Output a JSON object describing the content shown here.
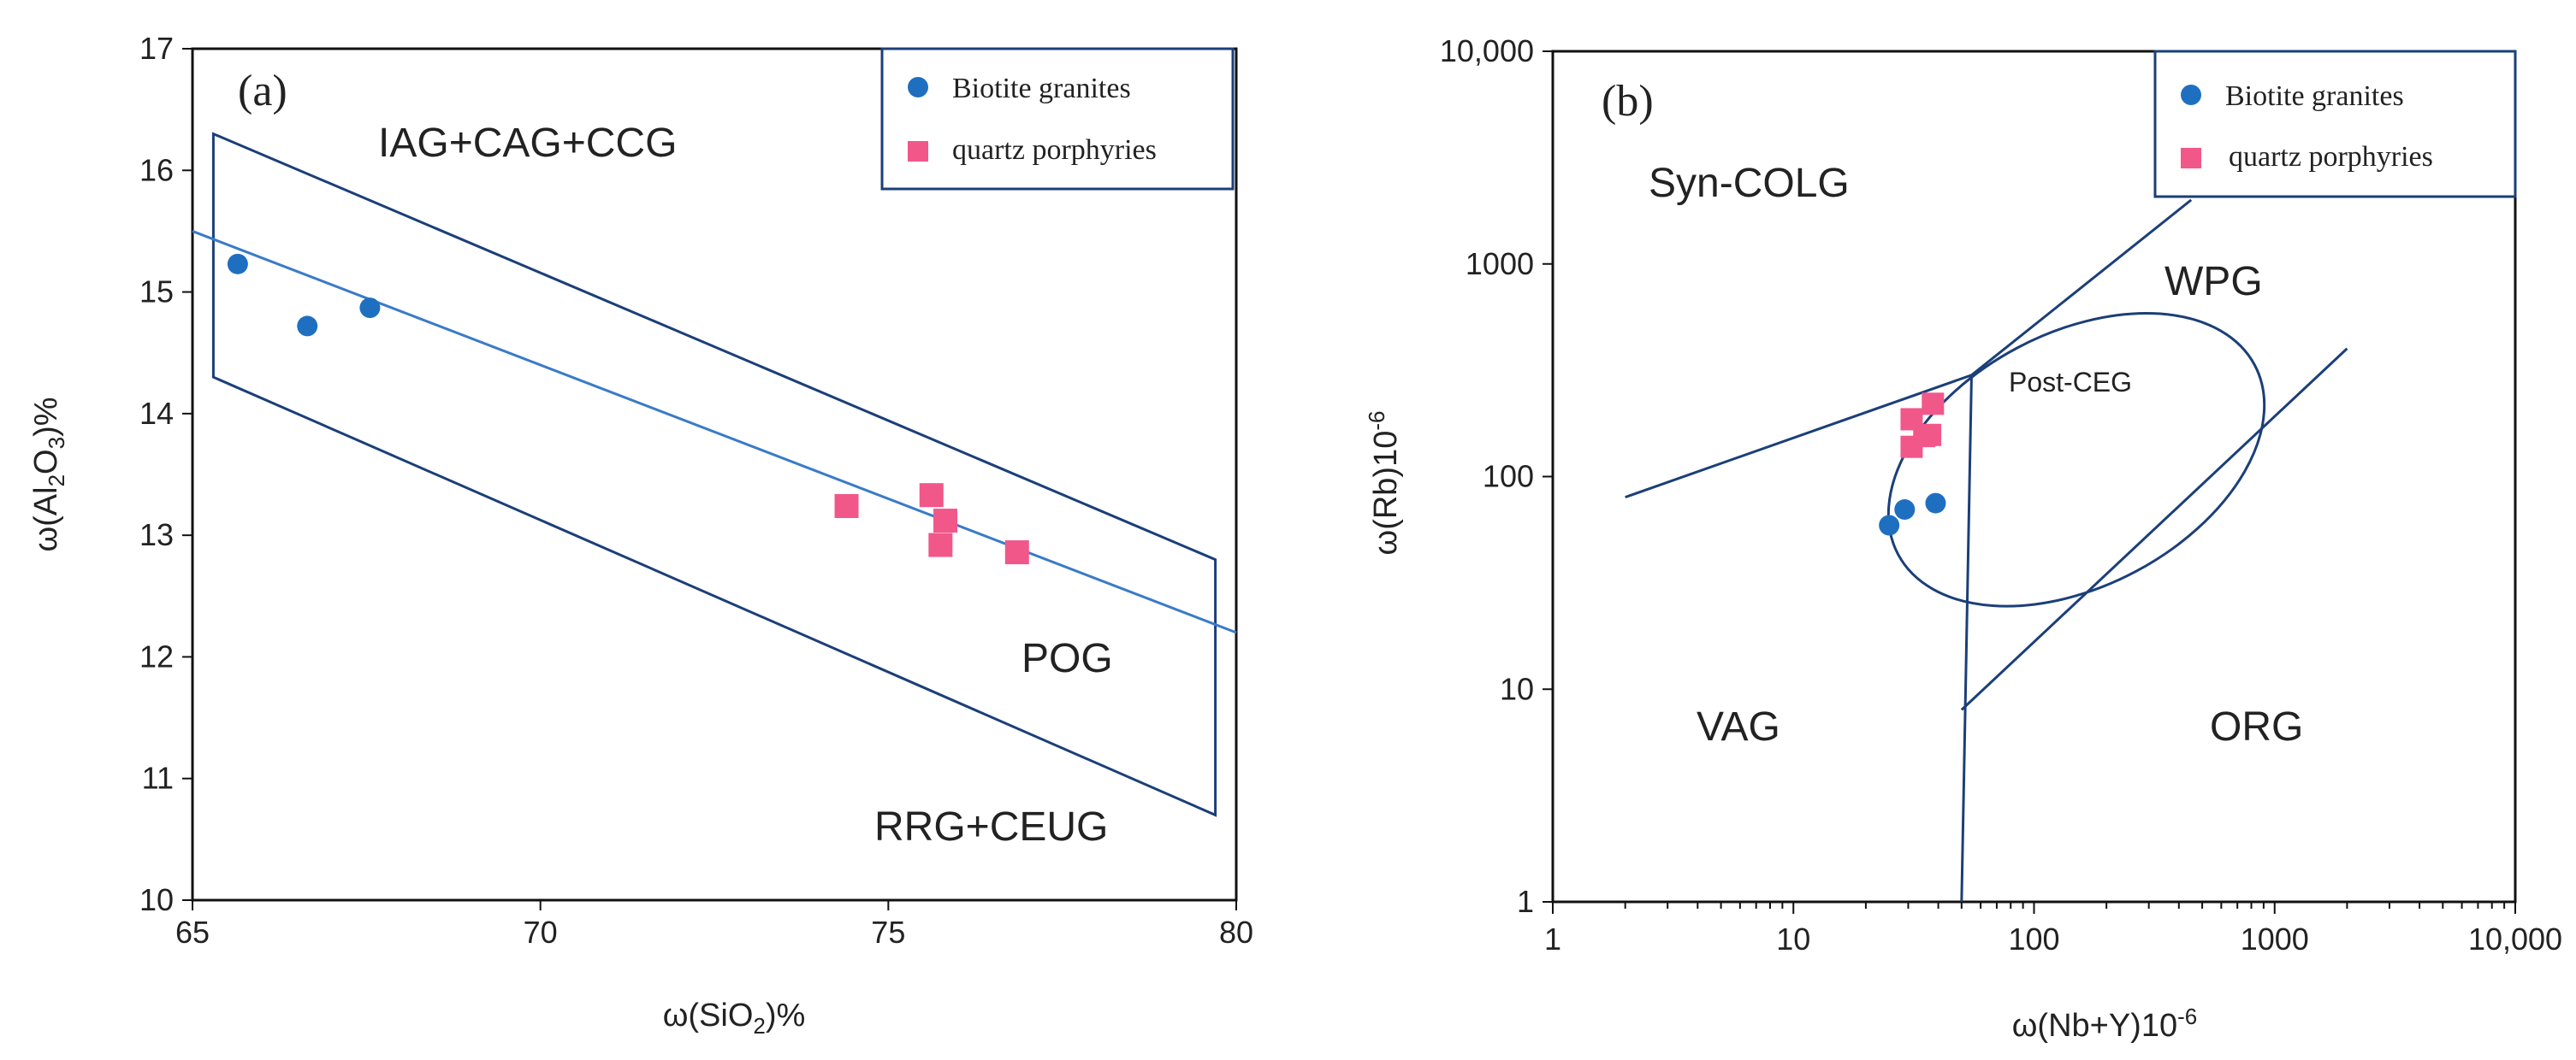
{
  "chart_data": [
    {
      "id": "a",
      "type": "scatter",
      "panel_label": "(a)",
      "xlabel": "ω(SiO₂)%",
      "ylabel": "ω(Al₂O₃)%",
      "xlim": [
        65,
        80
      ],
      "ylim": [
        10,
        17
      ],
      "x_ticks": [
        "65",
        "70",
        "75",
        "80"
      ],
      "y_ticks": [
        "10",
        "11",
        "12",
        "13",
        "14",
        "15",
        "16",
        "17"
      ],
      "colors": {
        "biotite": "#1f6fc1",
        "quartz": "#f2578a",
        "field_line": "#1b3f78",
        "trend_line": "#3a7bc8"
      },
      "legend": [
        "Biotite granites",
        "quartz porphyries"
      ],
      "legend_position": "top-right",
      "field_labels": [
        "IAG+CAG+CCG",
        "POG",
        "RRG+CEUG"
      ],
      "series": [
        {
          "name": "Biotite granites",
          "marker": "circle",
          "points": [
            [
              65.65,
              15.23
            ],
            [
              66.65,
              14.72
            ],
            [
              67.55,
              14.87
            ]
          ]
        },
        {
          "name": "quartz porphyries",
          "marker": "square",
          "points": [
            [
              74.4,
              13.24
            ],
            [
              75.62,
              13.33
            ],
            [
              75.82,
              13.12
            ],
            [
              75.75,
              12.92
            ],
            [
              76.85,
              12.86
            ]
          ]
        }
      ],
      "field_polygon": [
        [
          65.3,
          16.3
        ],
        [
          79.7,
          12.8
        ],
        [
          79.7,
          10.7
        ],
        [
          65.3,
          14.3
        ]
      ],
      "trend_line": [
        [
          65,
          15.5
        ],
        [
          80,
          12.2
        ]
      ]
    },
    {
      "id": "b",
      "type": "scatter",
      "panel_label": "(b)",
      "xlabel": "ω(Nb+Y)10⁻⁶",
      "ylabel": "ω(Rb)10⁻⁶",
      "xscale": "log",
      "yscale": "log",
      "xlim": [
        1,
        10000
      ],
      "ylim": [
        1,
        10000
      ],
      "x_ticks": [
        "1",
        "10",
        "100",
        "1000",
        "10,000"
      ],
      "y_ticks": [
        "1",
        "10",
        "100",
        "1000",
        "10,000"
      ],
      "legend": [
        "Biotite granites",
        "quartz porphyries"
      ],
      "legend_position": "top-right",
      "field_labels": [
        "Syn-COLG",
        "WPG",
        "Post-CEG",
        "VAG",
        "ORG"
      ],
      "series": [
        {
          "name": "Biotite granites",
          "marker": "circle",
          "points": [
            [
              25,
              59
            ],
            [
              29,
              70
            ],
            [
              39,
              75
            ]
          ]
        },
        {
          "name": "quartz porphyries",
          "marker": "square",
          "points": [
            [
              31,
              186
            ],
            [
              38,
              220
            ],
            [
              35,
              155
            ],
            [
              37,
              157
            ],
            [
              31,
              138
            ]
          ]
        }
      ],
      "boundaries": [
        [
          [
            2,
            80
          ],
          [
            55,
            300
          ]
        ],
        [
          [
            55,
            300
          ],
          [
            450,
            2000
          ]
        ],
        [
          [
            55,
            300
          ],
          [
            50,
            1
          ]
        ],
        [
          [
            50,
            8
          ],
          [
            2000,
            400
          ]
        ]
      ],
      "ellipse": {
        "center": [
          150,
          120
        ],
        "note": "Post-CEG field"
      }
    }
  ]
}
